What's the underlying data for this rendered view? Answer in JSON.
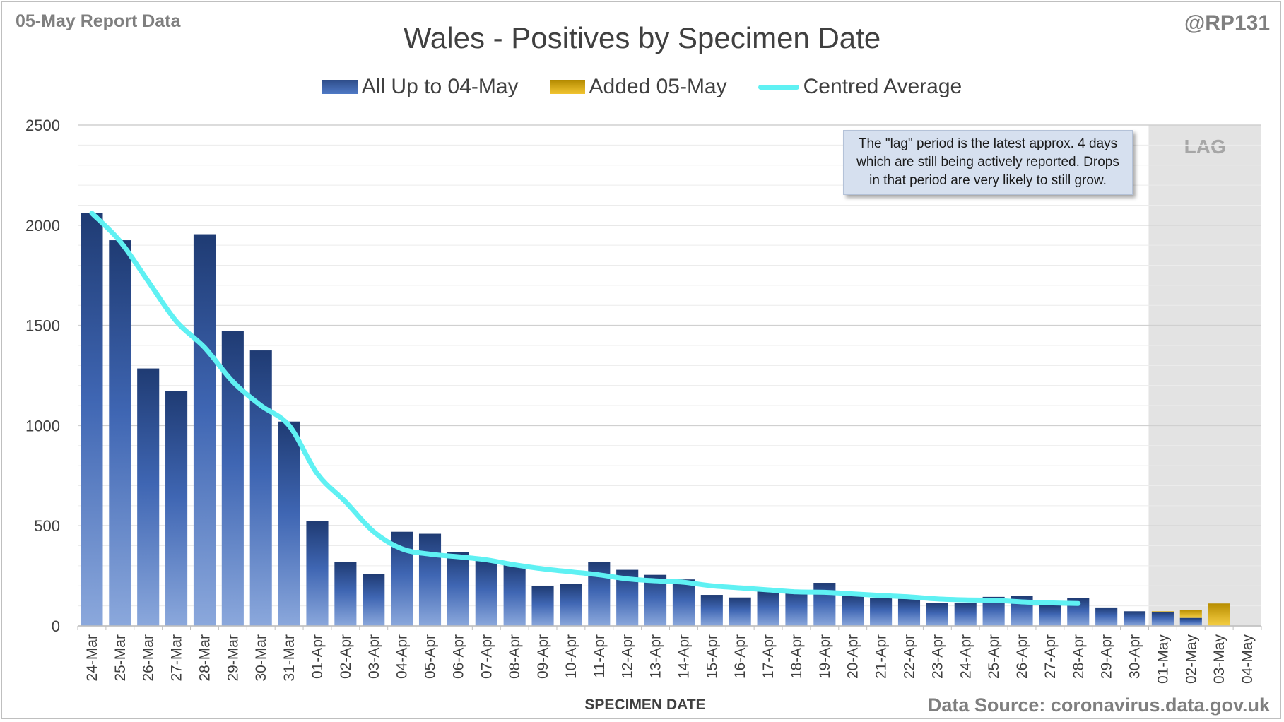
{
  "header": {
    "report_label": "05-May Report Data",
    "handle": "@RP131",
    "title": "Wales - Positives by Specimen Date"
  },
  "legend": {
    "items": [
      {
        "label": "All Up to 04-May",
        "color": "#3f66b3"
      },
      {
        "label": "Added 05-May",
        "color": "#e0b21a"
      },
      {
        "label": "Centred Average",
        "color": "#5ff1f3"
      }
    ]
  },
  "annotation": {
    "lines": [
      "The \"lag\" period is the latest approx. 4 days",
      "which are still being actively reported.  Drops",
      "in that period are very likely to still grow."
    ],
    "lag_label": "LAG"
  },
  "footer": {
    "source": "Data Source: coronavirus.data.gov.uk"
  },
  "chart_data": {
    "type": "bar",
    "title": "Wales - Positives by Specimen Date",
    "xlabel": "SPECIMEN DATE",
    "ylabel": "",
    "ylim": [
      0,
      2500
    ],
    "yticks": [
      0,
      500,
      1000,
      1500,
      2000,
      2500
    ],
    "grid": true,
    "legend_position": "top",
    "categories": [
      "24-Mar",
      "25-Mar",
      "26-Mar",
      "27-Mar",
      "28-Mar",
      "29-Mar",
      "30-Mar",
      "31-Mar",
      "01-Apr",
      "02-Apr",
      "03-Apr",
      "04-Apr",
      "05-Apr",
      "06-Apr",
      "07-Apr",
      "08-Apr",
      "09-Apr",
      "10-Apr",
      "11-Apr",
      "12-Apr",
      "13-Apr",
      "14-Apr",
      "15-Apr",
      "16-Apr",
      "17-Apr",
      "18-Apr",
      "19-Apr",
      "20-Apr",
      "21-Apr",
      "22-Apr",
      "23-Apr",
      "24-Apr",
      "25-Apr",
      "26-Apr",
      "27-Apr",
      "28-Apr",
      "29-Apr",
      "30-Apr",
      "01-May",
      "02-May",
      "03-May",
      "04-May"
    ],
    "series": [
      {
        "name": "All Up to 04-May",
        "type": "bar",
        "color": "#3f66b3",
        "values": [
          2060,
          1925,
          1285,
          1172,
          1955,
          1473,
          1375,
          1020,
          522,
          318,
          258,
          470,
          460,
          367,
          330,
          305,
          198,
          210,
          318,
          280,
          255,
          232,
          155,
          142,
          172,
          178,
          215,
          152,
          140,
          135,
          115,
          115,
          145,
          150,
          105,
          138,
          92,
          73,
          70,
          40,
          0,
          0
        ]
      },
      {
        "name": "Added 05-May",
        "type": "bar",
        "color": "#e0b21a",
        "values": [
          0,
          0,
          0,
          0,
          0,
          0,
          0,
          0,
          0,
          0,
          0,
          0,
          0,
          0,
          0,
          0,
          0,
          0,
          0,
          0,
          0,
          0,
          0,
          0,
          0,
          0,
          0,
          0,
          0,
          0,
          0,
          0,
          0,
          0,
          0,
          0,
          0,
          0,
          3,
          40,
          112,
          0
        ]
      },
      {
        "name": "Centred Average",
        "type": "line",
        "color": "#5ff1f3",
        "values": [
          2060,
          1920,
          1720,
          1520,
          1390,
          1220,
          1100,
          1000,
          760,
          620,
          470,
          385,
          358,
          345,
          330,
          305,
          285,
          270,
          255,
          235,
          225,
          218,
          200,
          190,
          180,
          170,
          168,
          160,
          152,
          145,
          135,
          130,
          128,
          120,
          115,
          112,
          null,
          null,
          null,
          null,
          null,
          null
        ]
      }
    ],
    "lag_region": {
      "from": "01-May",
      "to": "04-May",
      "label": "LAG"
    }
  }
}
